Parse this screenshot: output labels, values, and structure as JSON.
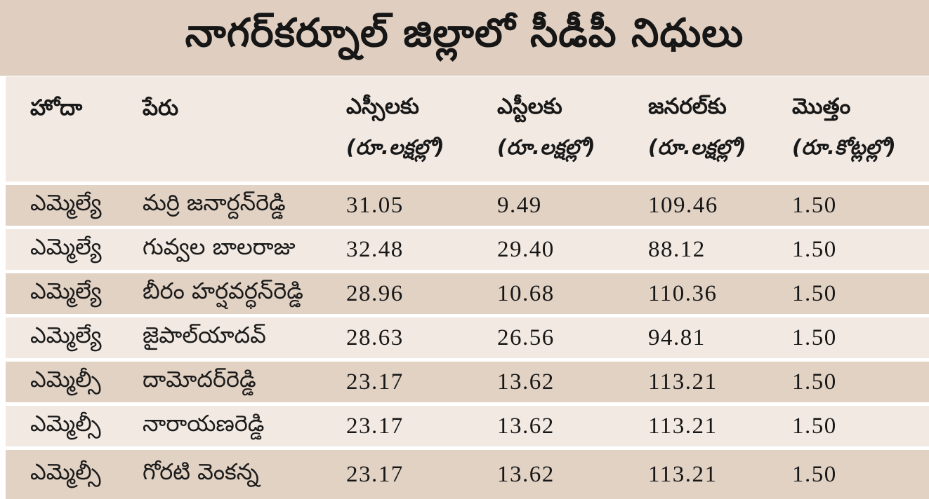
{
  "title": "నాగర్‌కర్నూల్ జిల్లాలో సీడీపీ నిధులు",
  "chart_data": {
    "type": "table",
    "title": "నాగర్‌కర్నూల్ జిల్లాలో సీడీపీ నిధులు",
    "columns": [
      {
        "label": "హోదా",
        "sublabel": ""
      },
      {
        "label": "పేరు",
        "sublabel": ""
      },
      {
        "label": "ఎస్సీలకు",
        "sublabel": "(రూ.లక్షల్లో)"
      },
      {
        "label": "ఎస్టీలకు",
        "sublabel": "(రూ.లక్షల్లో)"
      },
      {
        "label": "జనరల్‌కు",
        "sublabel": "(రూ.లక్షల్లో)"
      },
      {
        "label": "మొత్తం",
        "sublabel": "(రూ.కోట్లల్లో)"
      }
    ],
    "rows": [
      {
        "designation": "ఎమ్మెల్యే",
        "name": "మర్రి జనార్దన్‌రెడ్డి",
        "sc_lakhs": "31.05",
        "st_lakhs": "9.49",
        "general_lakhs": "109.46",
        "total_crores": "1.50"
      },
      {
        "designation": "ఎమ్మెల్యే",
        "name": "గువ్వల బాలరాజు",
        "sc_lakhs": "32.48",
        "st_lakhs": "29.40",
        "general_lakhs": "88.12",
        "total_crores": "1.50"
      },
      {
        "designation": "ఎమ్మెల్యే",
        "name": "బీరం హర్షవర్ధన్‌రెడ్డి",
        "sc_lakhs": "28.96",
        "st_lakhs": "10.68",
        "general_lakhs": "110.36",
        "total_crores": "1.50"
      },
      {
        "designation": "ఎమ్మెల్యే",
        "name": "జైపాల్‌యాదవ్",
        "sc_lakhs": "28.63",
        "st_lakhs": "26.56",
        "general_lakhs": "94.81",
        "total_crores": "1.50"
      },
      {
        "designation": "ఎమ్మెల్సీ",
        "name": "దామోదర్‌రెడ్డి",
        "sc_lakhs": "23.17",
        "st_lakhs": "13.62",
        "general_lakhs": "113.21",
        "total_crores": "1.50"
      },
      {
        "designation": "ఎమ్మెల్సీ",
        "name": "నారాయణరెడ్డి",
        "sc_lakhs": "23.17",
        "st_lakhs": "13.62",
        "general_lakhs": "113.21",
        "total_crores": "1.50"
      },
      {
        "designation": "ఎమ్మెల్సీ",
        "name": "గోరటి వెంకన్న",
        "sc_lakhs": "23.17",
        "st_lakhs": "13.62",
        "general_lakhs": "113.21",
        "total_crores": "1.50"
      }
    ]
  },
  "colors": {
    "title_band": "#e0cfc1",
    "row_dark": "#e2d2c4",
    "row_light": "#f2e9e2",
    "separator": "#ffffff",
    "text": "#1b1b1b"
  }
}
